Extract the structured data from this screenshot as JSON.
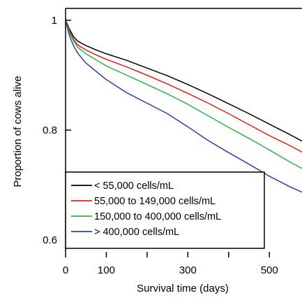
{
  "chart_data": {
    "type": "line",
    "xlabel": "Survival time (days)",
    "ylabel": "Proportion of cows alive",
    "xlim": [
      0,
      580
    ],
    "ylim": [
      0.6,
      1.0
    ],
    "x_ticks_major": [
      0,
      100,
      300,
      500
    ],
    "x_ticks_minor": [
      200,
      400
    ],
    "y_ticks": [
      {
        "value": 1.0,
        "label": "1"
      },
      {
        "value": 0.8,
        "label": "0.8"
      },
      {
        "value": 0.6,
        "label": "0.6"
      }
    ],
    "legend_position": "bottom-left",
    "series": [
      {
        "name": "< 55,000 cells/mL",
        "color": "#000000",
        "x": [
          0,
          5,
          10,
          20,
          30,
          50,
          75,
          100,
          150,
          200,
          250,
          300,
          350,
          400,
          450,
          500,
          550,
          580
        ],
        "y": [
          1.0,
          0.992,
          0.983,
          0.97,
          0.962,
          0.954,
          0.946,
          0.939,
          0.927,
          0.913,
          0.899,
          0.883,
          0.866,
          0.848,
          0.83,
          0.811,
          0.792,
          0.78
        ]
      },
      {
        "name": "55,000 to 149,000 cells/mL",
        "color": "#e0201c",
        "x": [
          0,
          5,
          10,
          20,
          30,
          50,
          75,
          100,
          150,
          200,
          250,
          300,
          350,
          400,
          450,
          500,
          550,
          580
        ],
        "y": [
          1.0,
          0.99,
          0.98,
          0.965,
          0.955,
          0.946,
          0.937,
          0.929,
          0.915,
          0.9,
          0.884,
          0.867,
          0.849,
          0.83,
          0.81,
          0.79,
          0.772,
          0.76
        ]
      },
      {
        "name": "150,000 to 400,000 cells/mL",
        "color": "#2fb24a",
        "x": [
          0,
          5,
          10,
          20,
          30,
          50,
          75,
          100,
          150,
          200,
          250,
          300,
          350,
          400,
          450,
          500,
          550,
          580
        ],
        "y": [
          1.0,
          0.988,
          0.977,
          0.962,
          0.951,
          0.939,
          0.928,
          0.917,
          0.9,
          0.883,
          0.866,
          0.847,
          0.826,
          0.805,
          0.785,
          0.764,
          0.742,
          0.73
        ]
      },
      {
        "name": "> 400,000 cells/mL",
        "color": "#2b3fa6",
        "x": [
          0,
          5,
          10,
          20,
          30,
          50,
          75,
          100,
          150,
          200,
          250,
          300,
          350,
          400,
          450,
          500,
          550,
          580
        ],
        "y": [
          1.0,
          0.985,
          0.971,
          0.953,
          0.94,
          0.922,
          0.907,
          0.892,
          0.868,
          0.849,
          0.83,
          0.806,
          0.781,
          0.759,
          0.738,
          0.716,
          0.697,
          0.687
        ]
      }
    ]
  }
}
